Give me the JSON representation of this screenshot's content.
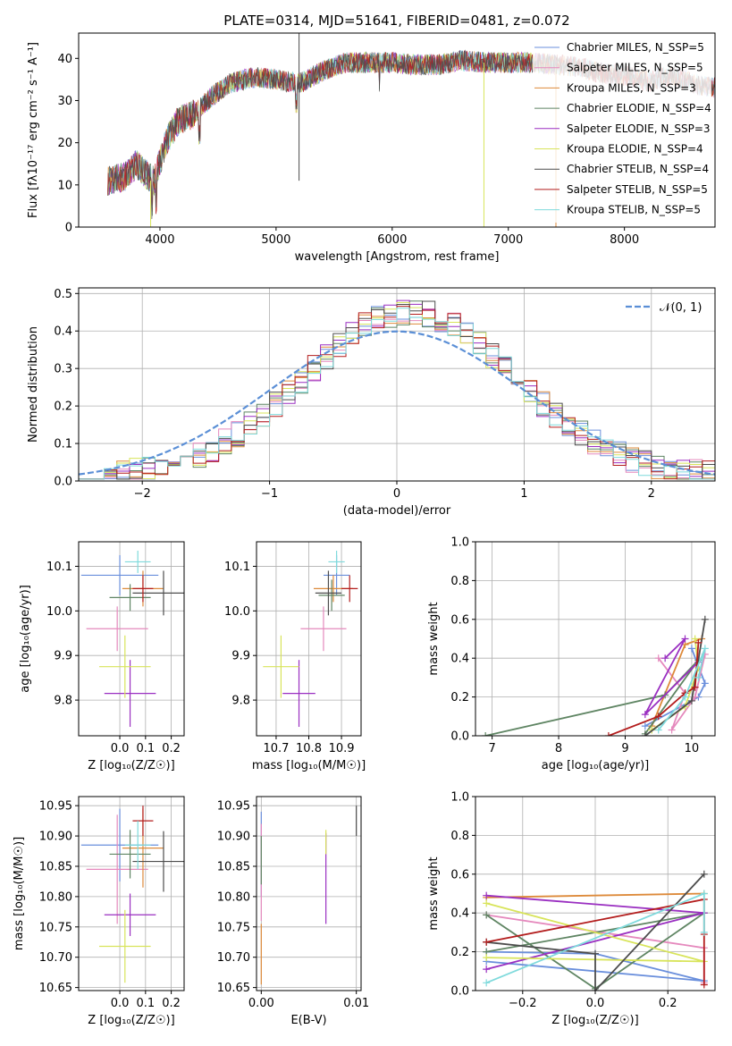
{
  "colors": [
    "#6a8fdc",
    "#e589bd",
    "#dd8a3a",
    "#5f8563",
    "#9a2fc1",
    "#d8e45a",
    "#4d4d4d",
    "#b31d1d",
    "#7fdadc"
  ],
  "chart_data": [
    {
      "id": "spectrum",
      "type": "line",
      "title": "PLATE=0314, MJD=51641, FIBERID=0481, z=0.072",
      "xlabel": "wavelength [Angstrom, rest frame]",
      "ylabel": "Flux [fλ10⁻¹⁷ erg cm⁻² s⁻¹ A⁻¹]",
      "xlim": [
        3300,
        8780
      ],
      "ylim": [
        0,
        46
      ],
      "xticks": [
        4000,
        5000,
        6000,
        7000,
        8000
      ],
      "yticks": [
        0,
        10,
        20,
        30,
        40
      ],
      "grid": false,
      "legend_position": "top-right",
      "continuum": {
        "x": [
          3550,
          3700,
          3800,
          3900,
          3950,
          4050,
          4150,
          4300,
          4450,
          4600,
          4800,
          5000,
          5200,
          5400,
          5600,
          5800,
          6000,
          6200,
          6400,
          6600,
          6800,
          7000,
          7200,
          7400,
          7600,
          7800,
          8000,
          8200,
          8400,
          8600,
          8780
        ],
        "y": [
          11,
          12,
          15,
          12,
          11,
          20,
          25,
          27,
          31,
          34,
          35.5,
          35,
          34,
          37,
          39,
          39,
          39,
          38.5,
          38.5,
          39.5,
          39,
          39,
          39,
          38.5,
          38,
          36.5,
          36,
          34.5,
          36,
          34,
          33
        ]
      },
      "series": [
        {
          "name": "Chabrier MILES, N_SSP=5"
        },
        {
          "name": "Salpeter MILES, N_SSP=5"
        },
        {
          "name": "Kroupa MILES, N_SSP=3"
        },
        {
          "name": "Chabrier ELODIE, N_SSP=4"
        },
        {
          "name": "Salpeter ELODIE, N_SSP=3"
        },
        {
          "name": "Kroupa ELODIE, N_SSP=4"
        },
        {
          "name": "Chabrier STELIB, N_SSP=4"
        },
        {
          "name": "Salpeter STELIB, N_SSP=5"
        },
        {
          "name": "Kroupa STELIB, N_SSP=5"
        }
      ]
    },
    {
      "id": "residuals",
      "type": "histogram",
      "xlabel": "(data-model)/error",
      "ylabel": "Normed distribution",
      "xlim": [
        -2.5,
        2.5
      ],
      "ylim": [
        0,
        0.515
      ],
      "xticks": [
        -2,
        -1,
        0,
        1,
        2
      ],
      "yticks": [
        0.0,
        0.1,
        0.2,
        0.3,
        0.4,
        0.5
      ],
      "grid": true,
      "legend_position": "top-right",
      "reference_curve": {
        "name": "𝒩(0, 1)",
        "mean": 0,
        "sigma": 1
      },
      "bin_width": 0.1
    },
    {
      "id": "age_vs_Z",
      "type": "errorbar",
      "xlabel": "Z [log₁₀(Z/Z☉)]",
      "ylabel": "age  [log₁₀(age/yr)]",
      "xlim": [
        -0.16,
        0.25
      ],
      "ylim": [
        9.72,
        10.155
      ],
      "xticks": [
        0.0,
        0.1,
        0.2
      ],
      "yticks": [
        9.8,
        9.9,
        10.0,
        10.1
      ],
      "points": [
        {
          "x": 0.0,
          "y": 10.08,
          "xerr": 0.15,
          "yerr": 0.045
        },
        {
          "x": -0.01,
          "y": 9.96,
          "xerr": 0.12,
          "yerr": 0.05
        },
        {
          "x": 0.09,
          "y": 10.05,
          "xerr": 0.08,
          "yerr": 0.04
        },
        {
          "x": 0.04,
          "y": 10.03,
          "xerr": 0.08,
          "yerr": 0.03
        },
        {
          "x": 0.04,
          "y": 9.815,
          "xerr": 0.1,
          "yerr": 0.075
        },
        {
          "x": 0.02,
          "y": 9.875,
          "xerr": 0.1,
          "yerr": 0.07
        },
        {
          "x": 0.17,
          "y": 10.04,
          "xerr": 0.12,
          "yerr": 0.05
        },
        {
          "x": 0.09,
          "y": 10.05,
          "xerr": 0.04,
          "yerr": 0.03
        },
        {
          "x": 0.07,
          "y": 10.11,
          "xerr": 0.05,
          "yerr": 0.025
        }
      ]
    },
    {
      "id": "age_vs_mass",
      "type": "errorbar",
      "xlabel": "mass [log₁₀(M/M☉)]",
      "ylabel": "",
      "xlim": [
        10.64,
        10.96
      ],
      "ylim": [
        9.72,
        10.155
      ],
      "xticks": [
        10.7,
        10.8,
        10.9
      ],
      "yticks": [
        9.8,
        9.9,
        10.0,
        10.1
      ],
      "points": [
        {
          "x": 10.885,
          "y": 10.08,
          "xerr": 0.04,
          "yerr": 0.045
        },
        {
          "x": 10.845,
          "y": 9.96,
          "xerr": 0.07,
          "yerr": 0.05
        },
        {
          "x": 10.875,
          "y": 10.05,
          "xerr": 0.06,
          "yerr": 0.03
        },
        {
          "x": 10.87,
          "y": 10.035,
          "xerr": 0.04,
          "yerr": 0.035
        },
        {
          "x": 10.77,
          "y": 9.815,
          "xerr": 0.05,
          "yerr": 0.075
        },
        {
          "x": 10.715,
          "y": 9.875,
          "xerr": 0.055,
          "yerr": 0.07
        },
        {
          "x": 10.86,
          "y": 10.04,
          "xerr": 0.04,
          "yerr": 0.05
        },
        {
          "x": 10.925,
          "y": 10.05,
          "xerr": 0.025,
          "yerr": 0.03
        },
        {
          "x": 10.885,
          "y": 10.11,
          "xerr": 0.025,
          "yerr": 0.025
        }
      ]
    },
    {
      "id": "mass_weight_vs_age",
      "type": "line",
      "xlabel": "age  [log₁₀(age/yr)]",
      "ylabel": "mass weight",
      "xlim": [
        6.75,
        10.35
      ],
      "ylim": [
        0,
        1
      ],
      "xticks": [
        7,
        8,
        9,
        10
      ],
      "yticks": [
        0.0,
        0.2,
        0.4,
        0.6,
        0.8,
        1.0
      ],
      "grid": true,
      "series": [
        {
          "x": [
            9.3,
            10.1,
            10.2,
            10.0
          ],
          "y": [
            0.05,
            0.2,
            0.27,
            0.45
          ]
        },
        {
          "x": [
            9.5,
            9.9,
            9.7,
            10.05,
            10.2
          ],
          "y": [
            0.4,
            0.22,
            0.03,
            0.2,
            0.42
          ]
        },
        {
          "x": [
            9.4,
            9.9,
            10.15
          ],
          "y": [
            0.05,
            0.47,
            0.5
          ]
        },
        {
          "x": [
            6.9,
            9.6,
            10.1,
            9.3
          ],
          "y": [
            0.0,
            0.21,
            0.39,
            0.01
          ]
        },
        {
          "x": [
            9.6,
            9.9,
            9.3,
            10.1
          ],
          "y": [
            0.4,
            0.5,
            0.11,
            0.38
          ]
        },
        {
          "x": [
            9.4,
            9.9,
            10.1,
            10.05
          ],
          "y": [
            0.03,
            0.15,
            0.35,
            0.5
          ]
        },
        {
          "x": [
            9.3,
            10.0,
            10.2
          ],
          "y": [
            0.0,
            0.18,
            0.6
          ]
        },
        {
          "x": [
            8.75,
            9.5,
            9.9,
            10.05,
            10.1
          ],
          "y": [
            0.0,
            0.1,
            0.22,
            0.25,
            0.48
          ]
        },
        {
          "x": [
            9.5,
            9.9,
            10.2,
            10.1
          ],
          "y": [
            0.03,
            0.2,
            0.45,
            0.3
          ]
        }
      ]
    },
    {
      "id": "mass_vs_Z",
      "type": "errorbar",
      "xlabel": "Z [log₁₀(Z/Z☉)]",
      "ylabel": "mass [log₁₀(M/M☉)]",
      "xlim": [
        -0.16,
        0.25
      ],
      "ylim": [
        10.645,
        10.965
      ],
      "xticks": [
        0.0,
        0.1,
        0.2
      ],
      "yticks": [
        10.65,
        10.7,
        10.75,
        10.8,
        10.85,
        10.9,
        10.95
      ],
      "points": [
        {
          "x": 0.0,
          "y": 10.885,
          "xerr": 0.15,
          "yerr": 0.06
        },
        {
          "x": -0.01,
          "y": 10.845,
          "xerr": 0.12,
          "yerr": 0.09
        },
        {
          "x": 0.09,
          "y": 10.88,
          "xerr": 0.08,
          "yerr": 0.065
        },
        {
          "x": 0.04,
          "y": 10.87,
          "xerr": 0.08,
          "yerr": 0.04
        },
        {
          "x": 0.04,
          "y": 10.77,
          "xerr": 0.1,
          "yerr": 0.035
        },
        {
          "x": 0.02,
          "y": 10.718,
          "xerr": 0.1,
          "yerr": 0.06
        },
        {
          "x": 0.17,
          "y": 10.858,
          "xerr": 0.12,
          "yerr": 0.05
        },
        {
          "x": 0.09,
          "y": 10.925,
          "xerr": 0.04,
          "yerr": 0.025
        },
        {
          "x": 0.07,
          "y": 10.885,
          "xerr": 0.05,
          "yerr": 0.04
        }
      ]
    },
    {
      "id": "mass_vs_EBV",
      "type": "errorbar",
      "xlabel": "E(B-V)",
      "ylabel": "",
      "xlim": [
        -0.0005,
        0.0105
      ],
      "ylim": [
        10.645,
        10.965
      ],
      "xticks": [
        0.0,
        0.01
      ],
      "yticks": [
        10.65,
        10.7,
        10.75,
        10.8,
        10.85,
        10.9,
        10.95
      ],
      "points": [
        {
          "x": 0.0,
          "y": 10.87,
          "yerr": 0.07
        },
        {
          "x": 0.0,
          "y": 10.84,
          "yerr": 0.08
        },
        {
          "x": 0.0,
          "y": 10.705,
          "yerr": 0.05
        },
        {
          "x": 0.0,
          "y": 10.86,
          "yerr": 0.04
        },
        {
          "x": 0.0068,
          "y": 10.83,
          "yerr": 0.075
        },
        {
          "x": 0.0068,
          "y": 10.89,
          "yerr": 0.02
        },
        {
          "x": 0.01,
          "y": 10.925,
          "yerr": 0.025
        }
      ]
    },
    {
      "id": "mass_weight_vs_Z",
      "type": "line",
      "xlabel": "Z [log₁₀(Z/Z☉)]",
      "ylabel": "mass weight",
      "xlim": [
        -0.33,
        0.33
      ],
      "ylim": [
        0,
        1
      ],
      "xticks": [
        -0.2,
        0.0,
        0.2
      ],
      "yticks": [
        0.0,
        0.2,
        0.4,
        0.6,
        0.8,
        1.0
      ],
      "grid": true,
      "series": [
        {
          "x": [
            -0.3,
            0.0,
            0.3,
            -0.3
          ],
          "y": [
            0.2,
            0.19,
            0.05,
            0.15
          ]
        },
        {
          "x": [
            -0.3,
            0.3,
            0.3
          ],
          "y": [
            0.39,
            0.22,
            0.04
          ]
        },
        {
          "x": [
            -0.3,
            0.3
          ],
          "y": [
            0.48,
            0.5
          ]
        },
        {
          "x": [
            -0.3,
            0.0,
            0.3,
            -0.3
          ],
          "y": [
            0.39,
            0.01,
            0.4,
            0.2
          ]
        },
        {
          "x": [
            -0.3,
            0.3,
            -0.3
          ],
          "y": [
            0.11,
            0.4,
            0.49
          ]
        },
        {
          "x": [
            -0.3,
            0.3,
            -0.3
          ],
          "y": [
            0.17,
            0.15,
            0.45
          ]
        },
        {
          "x": [
            -0.3,
            0.0,
            0.0,
            0.3
          ],
          "y": [
            0.25,
            0.19,
            0.0,
            0.6
          ]
        },
        {
          "x": [
            -0.3,
            0.3,
            0.3,
            0.3
          ],
          "y": [
            0.25,
            0.47,
            0.29,
            0.03
          ]
        },
        {
          "x": [
            -0.3,
            0.3,
            0.3
          ],
          "y": [
            0.04,
            0.5,
            0.3
          ]
        }
      ]
    }
  ]
}
